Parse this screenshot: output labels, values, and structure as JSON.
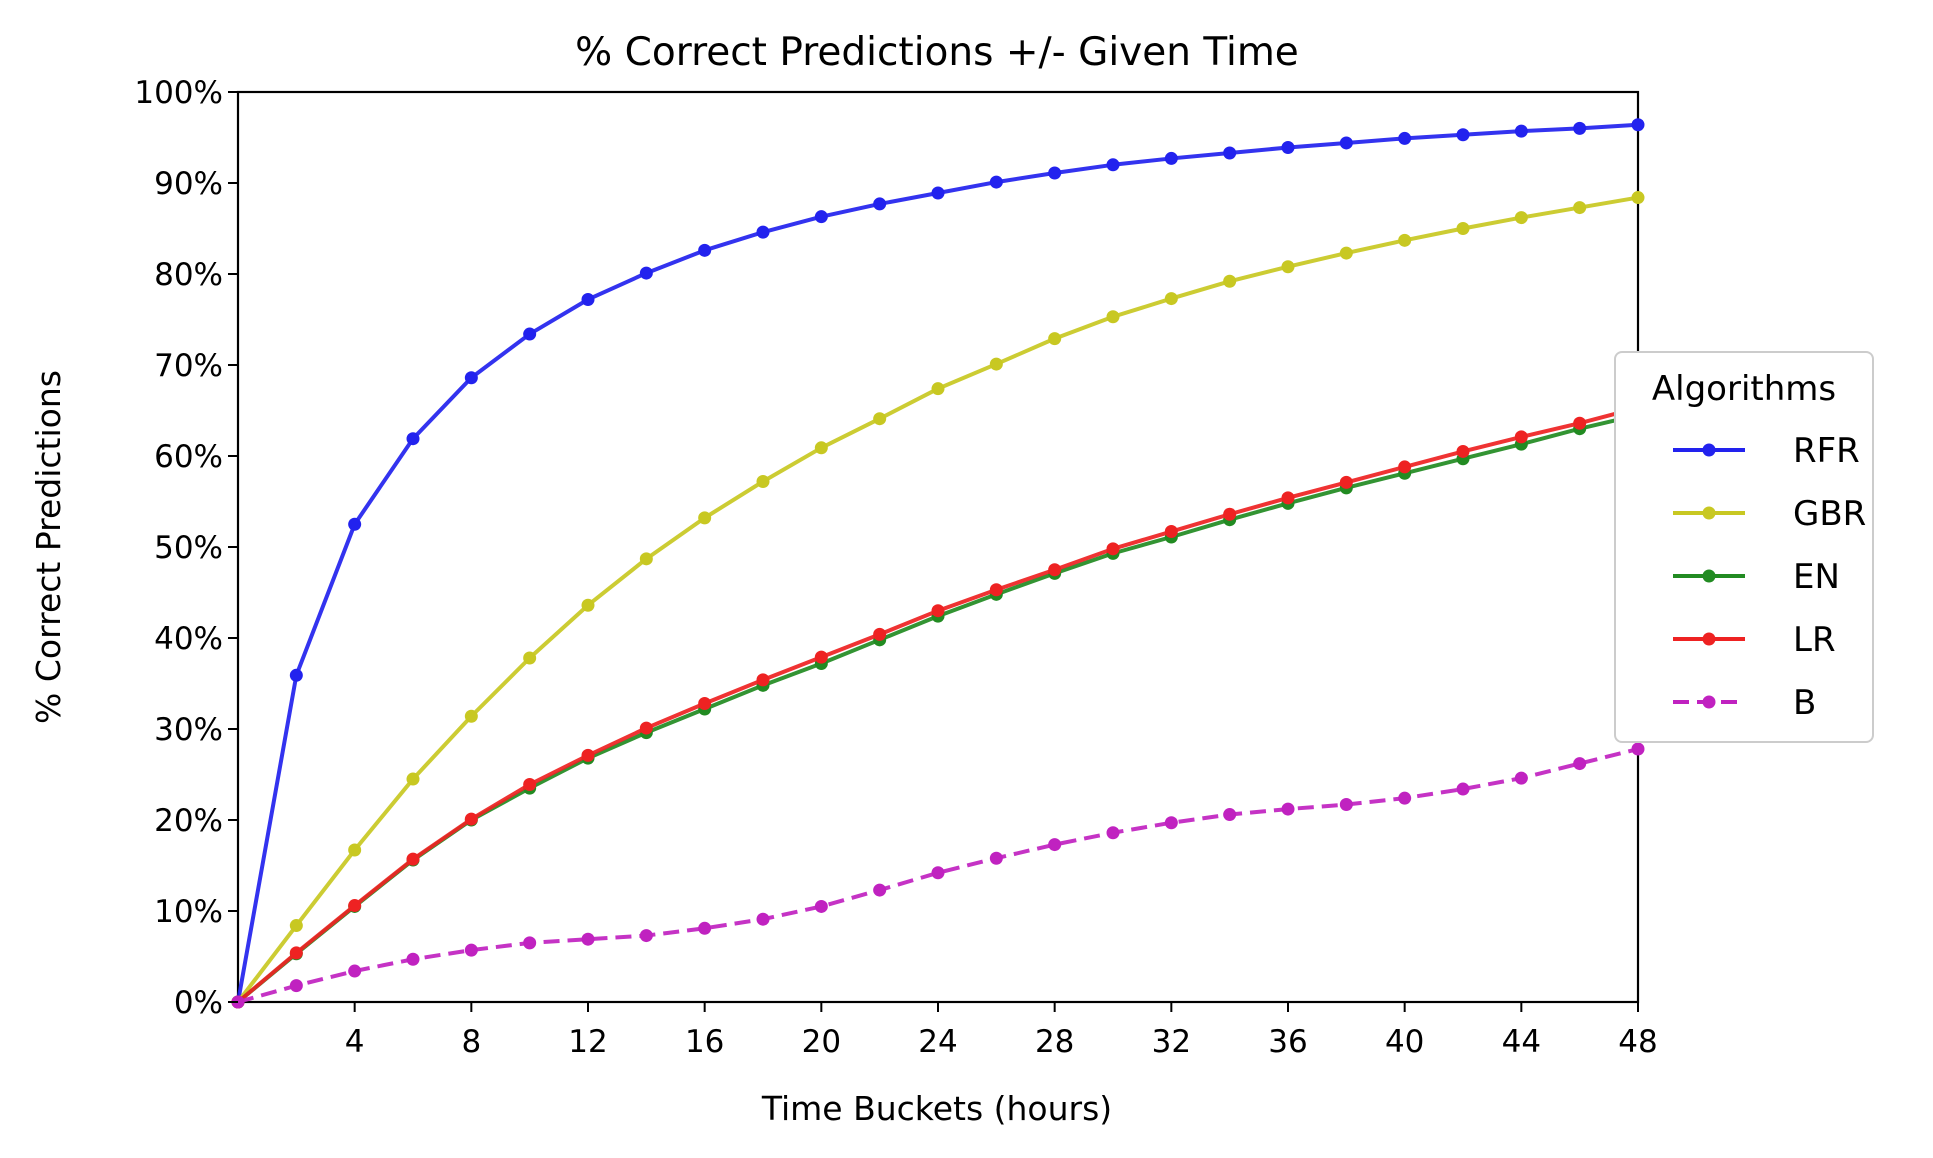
{
  "chart_data": {
    "type": "line",
    "title": "% Correct Predictions +/- Given Time",
    "xlabel": "Time Buckets (hours)",
    "ylabel": "% Correct Predictions",
    "xlim": [
      0,
      48
    ],
    "ylim": [
      0,
      100
    ],
    "x_ticks": [
      4,
      8,
      12,
      16,
      20,
      24,
      28,
      32,
      36,
      40,
      44,
      48
    ],
    "x_tick_labels": [
      "4",
      "8",
      "12",
      "16",
      "20",
      "24",
      "28",
      "32",
      "36",
      "40",
      "44",
      "48"
    ],
    "y_ticks": [
      0,
      10,
      20,
      30,
      40,
      50,
      60,
      70,
      80,
      90,
      100
    ],
    "y_tick_labels": [
      "0%",
      "10%",
      "20%",
      "30%",
      "40%",
      "50%",
      "60%",
      "70%",
      "80%",
      "90%",
      "100%"
    ],
    "grid": false,
    "legend": {
      "title": "Algorithms",
      "placement": "center-right, outside plot"
    },
    "x": [
      0,
      2,
      4,
      6,
      8,
      10,
      12,
      14,
      16,
      18,
      20,
      22,
      24,
      26,
      28,
      30,
      32,
      34,
      36,
      38,
      40,
      42,
      44,
      46,
      48
    ],
    "series": [
      {
        "name": "RFR",
        "color": "#2222ee",
        "style": "solid",
        "values": [
          0,
          35.9,
          52.5,
          61.9,
          68.6,
          73.4,
          77.2,
          80.1,
          82.6,
          84.6,
          86.3,
          87.7,
          88.9,
          90.1,
          91.1,
          92.0,
          92.7,
          93.3,
          93.9,
          94.4,
          94.9,
          95.3,
          95.7,
          96.0,
          96.4
        ]
      },
      {
        "name": "GBR",
        "color": "#c8c822",
        "style": "solid",
        "values": [
          0,
          8.4,
          16.7,
          24.5,
          31.4,
          37.8,
          43.6,
          48.7,
          53.2,
          57.2,
          60.9,
          64.1,
          67.4,
          70.1,
          72.9,
          75.3,
          77.3,
          79.2,
          80.8,
          82.3,
          83.7,
          85.0,
          86.2,
          87.3,
          88.4
        ]
      },
      {
        "name": "EN",
        "color": "#228b22",
        "style": "solid",
        "values": [
          0,
          5.3,
          10.5,
          15.6,
          20.0,
          23.5,
          26.8,
          29.6,
          32.2,
          34.8,
          37.2,
          39.8,
          42.4,
          44.8,
          47.1,
          49.3,
          51.1,
          53.0,
          54.8,
          56.5,
          58.1,
          59.7,
          61.3,
          63.0,
          64.5
        ]
      },
      {
        "name": "LR",
        "color": "#ee2222",
        "style": "solid",
        "values": [
          0,
          5.4,
          10.6,
          15.7,
          20.1,
          23.9,
          27.1,
          30.1,
          32.8,
          35.4,
          37.9,
          40.4,
          43.0,
          45.3,
          47.5,
          49.8,
          51.7,
          53.6,
          55.4,
          57.1,
          58.8,
          60.5,
          62.1,
          63.6,
          65.3
        ]
      },
      {
        "name": "B",
        "color": "#c022c0",
        "style": "dashed",
        "values": [
          0,
          1.8,
          3.4,
          4.7,
          5.7,
          6.5,
          6.9,
          7.3,
          8.1,
          9.1,
          10.5,
          12.3,
          14.2,
          15.8,
          17.3,
          18.6,
          19.7,
          20.6,
          21.2,
          21.7,
          22.4,
          23.4,
          24.6,
          26.2,
          27.8
        ]
      }
    ]
  }
}
